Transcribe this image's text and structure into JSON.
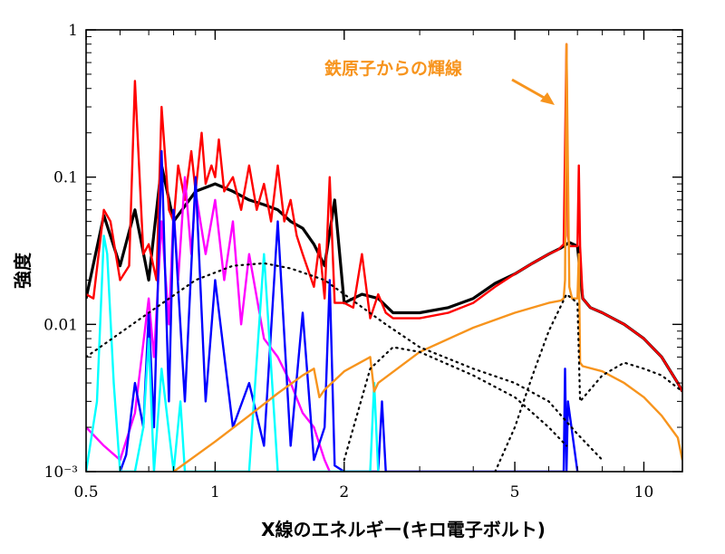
{
  "chart_data": {
    "type": "line",
    "title": "",
    "xlabel": "X線のエネルギー(キロ電子ボルト)",
    "ylabel": "強度",
    "xscale": "log",
    "yscale": "log",
    "xlim": [
      0.5,
      12.3
    ],
    "ylim": [
      0.001,
      1
    ],
    "grid": false,
    "x_ticks": [
      {
        "value": 0.5,
        "label": "0.5"
      },
      {
        "value": 1,
        "label": "1"
      },
      {
        "value": 2,
        "label": "2"
      },
      {
        "value": 5,
        "label": "5"
      },
      {
        "value": 10,
        "label": "10"
      }
    ],
    "y_ticks": [
      {
        "value": 0.001,
        "label": "10⁻³"
      },
      {
        "value": 0.01,
        "label": "0.01"
      },
      {
        "value": 0.1,
        "label": "0.1"
      },
      {
        "value": 1,
        "label": "1"
      }
    ],
    "annotation": {
      "text": "鉄原子からの輝線",
      "color": "#F7941D",
      "target_x": 6.6,
      "target_y": 0.8
    },
    "series": [
      {
        "color": "#000000",
        "style": "data",
        "x": [
          0.5,
          0.55,
          0.6,
          0.65,
          0.7,
          0.75,
          0.8,
          0.9,
          1.0,
          1.1,
          1.2,
          1.3,
          1.4,
          1.5,
          1.6,
          1.7,
          1.8,
          1.9,
          2.0,
          2.2,
          2.4,
          2.6,
          2.8,
          3.0,
          3.5,
          4.0,
          4.5,
          5.0,
          5.5,
          6.0,
          6.4,
          6.7,
          7.0,
          7.2,
          7.5,
          8.0,
          9.0,
          10.0,
          11.0,
          12.0,
          12.3
        ],
        "y": [
          0.015,
          0.055,
          0.025,
          0.06,
          0.02,
          0.12,
          0.05,
          0.08,
          0.09,
          0.08,
          0.07,
          0.065,
          0.06,
          0.05,
          0.045,
          0.035,
          0.025,
          0.07,
          0.014,
          0.016,
          0.015,
          0.012,
          0.012,
          0.012,
          0.013,
          0.015,
          0.019,
          0.022,
          0.026,
          0.03,
          0.033,
          0.036,
          0.034,
          0.015,
          0.013,
          0.012,
          0.01,
          0.008,
          0.006,
          0.004,
          0.0035
        ]
      },
      {
        "color": "#FF0000",
        "style": "solid",
        "x": [
          0.5,
          0.52,
          0.55,
          0.57,
          0.6,
          0.63,
          0.65,
          0.68,
          0.7,
          0.73,
          0.75,
          0.78,
          0.8,
          0.82,
          0.85,
          0.88,
          0.9,
          0.93,
          0.95,
          0.98,
          1.0,
          1.02,
          1.05,
          1.1,
          1.15,
          1.2,
          1.25,
          1.3,
          1.35,
          1.4,
          1.45,
          1.5,
          1.55,
          1.6,
          1.7,
          1.75,
          1.8,
          1.85,
          1.9,
          2.0,
          2.1,
          2.2,
          2.3,
          2.4,
          2.5,
          2.6,
          2.8,
          3.0,
          3.5,
          4.0,
          4.5,
          5.0,
          5.5,
          6.0,
          6.3,
          6.5,
          6.6,
          6.65,
          6.7,
          6.8,
          6.9,
          7.0,
          7.05,
          7.1,
          7.2,
          7.5,
          8.0,
          9.0,
          10.0,
          11.0,
          12.0,
          12.3
        ],
        "y": [
          0.016,
          0.015,
          0.06,
          0.05,
          0.02,
          0.025,
          0.45,
          0.03,
          0.035,
          0.02,
          0.3,
          0.06,
          0.05,
          0.12,
          0.07,
          0.15,
          0.08,
          0.2,
          0.09,
          0.12,
          0.1,
          0.18,
          0.08,
          0.1,
          0.06,
          0.12,
          0.06,
          0.09,
          0.05,
          0.12,
          0.05,
          0.07,
          0.04,
          0.03,
          0.018,
          0.035,
          0.015,
          0.1,
          0.014,
          0.014,
          0.013,
          0.03,
          0.011,
          0.016,
          0.012,
          0.011,
          0.011,
          0.011,
          0.012,
          0.014,
          0.018,
          0.022,
          0.026,
          0.03,
          0.032,
          0.035,
          0.8,
          0.04,
          0.034,
          0.034,
          0.034,
          0.034,
          0.12,
          0.034,
          0.015,
          0.013,
          0.012,
          0.01,
          0.008,
          0.006,
          0.004,
          0.0035
        ]
      },
      {
        "color": "#FF00FF",
        "style": "solid",
        "x": [
          0.5,
          0.55,
          0.6,
          0.65,
          0.7,
          0.72,
          0.75,
          0.78,
          0.8,
          0.82,
          0.85,
          0.88,
          0.9,
          0.95,
          1.0,
          1.05,
          1.1,
          1.15,
          1.2,
          1.3,
          1.4,
          1.5,
          1.6,
          1.7,
          1.8,
          1.85
        ],
        "y": [
          0.002,
          0.0015,
          0.0012,
          0.0025,
          0.015,
          0.006,
          0.05,
          0.01,
          0.06,
          0.02,
          0.1,
          0.03,
          0.08,
          0.03,
          0.07,
          0.02,
          0.05,
          0.01,
          0.03,
          0.008,
          0.006,
          0.004,
          0.0025,
          0.002,
          0.0012,
          0.001
        ]
      },
      {
        "color": "#0000FF",
        "style": "solid",
        "x": [
          0.6,
          0.62,
          0.65,
          0.68,
          0.7,
          0.72,
          0.75,
          0.78,
          0.8,
          0.85,
          0.9,
          0.95,
          1.0,
          1.1,
          1.2,
          1.3,
          1.4,
          1.5,
          1.6,
          1.7,
          1.8,
          1.85,
          1.9,
          2.0,
          2.2,
          2.4,
          2.45,
          2.5,
          3.0,
          6.0,
          6.5,
          6.55,
          6.6,
          6.65,
          7.0
        ],
        "y": [
          0.001,
          0.0013,
          0.004,
          0.002,
          0.012,
          0.002,
          0.15,
          0.003,
          0.06,
          0.003,
          0.1,
          0.003,
          0.02,
          0.002,
          0.004,
          0.0015,
          0.05,
          0.0015,
          0.012,
          0.0012,
          0.002,
          0.02,
          0.0011,
          0.001,
          0.001,
          0.001,
          0.003,
          0.001,
          0.001,
          0.001,
          0.001,
          0.005,
          0.001,
          0.003,
          0.001
        ]
      },
      {
        "color": "#00FFFF",
        "style": "solid",
        "x": [
          0.5,
          0.53,
          0.55,
          0.56,
          0.58,
          0.6,
          0.65,
          0.68,
          0.7,
          0.72,
          0.75,
          0.8,
          0.83,
          0.85,
          0.9,
          1.0,
          1.2,
          1.3,
          1.4,
          1.5,
          2.0,
          2.3,
          2.35,
          2.4
        ],
        "y": [
          0.001,
          0.003,
          0.04,
          0.03,
          0.004,
          0.001,
          0.001,
          0.002,
          0.008,
          0.001,
          0.005,
          0.001,
          0.003,
          0.001,
          0.001,
          0.001,
          0.001,
          0.03,
          0.001,
          0.001,
          0.001,
          0.001,
          0.004,
          0.001
        ]
      },
      {
        "color": "#F7941D",
        "style": "solid",
        "x": [
          0.8,
          1.0,
          1.2,
          1.4,
          1.6,
          1.7,
          1.75,
          1.8,
          2.0,
          2.3,
          2.35,
          2.4,
          3.0,
          4.0,
          5.0,
          6.0,
          6.4,
          6.5,
          6.55,
          6.6,
          6.7,
          6.8,
          7.0,
          7.05,
          7.1,
          7.2,
          8.0,
          9.0,
          10.0,
          11.0,
          12.0,
          12.3
        ],
        "y": [
          0.001,
          0.0016,
          0.0024,
          0.0034,
          0.0045,
          0.005,
          0.0032,
          0.0036,
          0.0048,
          0.006,
          0.0035,
          0.004,
          0.0065,
          0.0095,
          0.012,
          0.014,
          0.0145,
          0.015,
          0.02,
          0.8,
          0.018,
          0.015,
          0.015,
          0.03,
          0.0055,
          0.0052,
          0.0048,
          0.004,
          0.0032,
          0.0024,
          0.0017,
          0.0012
        ]
      },
      {
        "color": "#000000",
        "style": "dotted",
        "x": [
          0.5,
          0.7,
          0.9,
          1.1,
          1.3,
          1.5,
          1.8,
          2.0,
          2.5,
          3.0,
          4.0,
          5.0,
          6.0,
          7.0,
          8.0
        ],
        "y": [
          0.006,
          0.012,
          0.02,
          0.025,
          0.026,
          0.024,
          0.02,
          0.016,
          0.01,
          0.007,
          0.005,
          0.004,
          0.003,
          0.0018,
          0.0012
        ]
      },
      {
        "color": "#000000",
        "style": "dotted",
        "x": [
          2.0,
          2.3,
          2.6,
          3.0,
          4.0,
          5.0,
          6.0,
          6.6
        ],
        "y": [
          0.0012,
          0.005,
          0.007,
          0.0065,
          0.0045,
          0.0032,
          0.002,
          0.0015
        ]
      },
      {
        "color": "#000000",
        "style": "dotted",
        "x": [
          4.5,
          5.0,
          5.5,
          6.0,
          6.6,
          7.0,
          7.1,
          8.0,
          9.0,
          10.0,
          11.0,
          12.3
        ],
        "y": [
          0.001,
          0.002,
          0.0045,
          0.009,
          0.016,
          0.014,
          0.003,
          0.0045,
          0.0055,
          0.005,
          0.0045,
          0.0035
        ]
      }
    ]
  }
}
